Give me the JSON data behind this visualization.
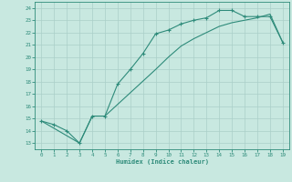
{
  "xlabel": "Humidex (Indice chaleur)",
  "line1_x": [
    0,
    1,
    2,
    3,
    4,
    5,
    6,
    7,
    8,
    9,
    10,
    11,
    12,
    13,
    14,
    15,
    16,
    17,
    18,
    19
  ],
  "line1_y": [
    14.8,
    14.5,
    14.0,
    13.0,
    15.2,
    15.2,
    17.8,
    19.0,
    20.3,
    21.9,
    22.2,
    22.7,
    23.0,
    23.2,
    23.8,
    23.8,
    23.3,
    23.3,
    23.3,
    21.2
  ],
  "line2_x": [
    0,
    3,
    4,
    5,
    9,
    10,
    11,
    12,
    13,
    14,
    15,
    16,
    17,
    18,
    19
  ],
  "line2_y": [
    14.8,
    13.0,
    15.2,
    15.2,
    19.0,
    20.0,
    20.9,
    21.5,
    22.0,
    22.5,
    22.8,
    23.0,
    23.2,
    23.5,
    21.2
  ],
  "line_color": "#2e8b7a",
  "bg_color": "#c8e8e0",
  "grid_color": "#aacfc8",
  "xlim": [
    -0.5,
    19.5
  ],
  "ylim": [
    12.5,
    24.5
  ],
  "yticks": [
    13,
    14,
    15,
    16,
    17,
    18,
    19,
    20,
    21,
    22,
    23,
    24
  ],
  "xticks": [
    0,
    1,
    2,
    3,
    4,
    5,
    6,
    7,
    8,
    9,
    10,
    11,
    12,
    13,
    14,
    15,
    16,
    17,
    18,
    19
  ]
}
